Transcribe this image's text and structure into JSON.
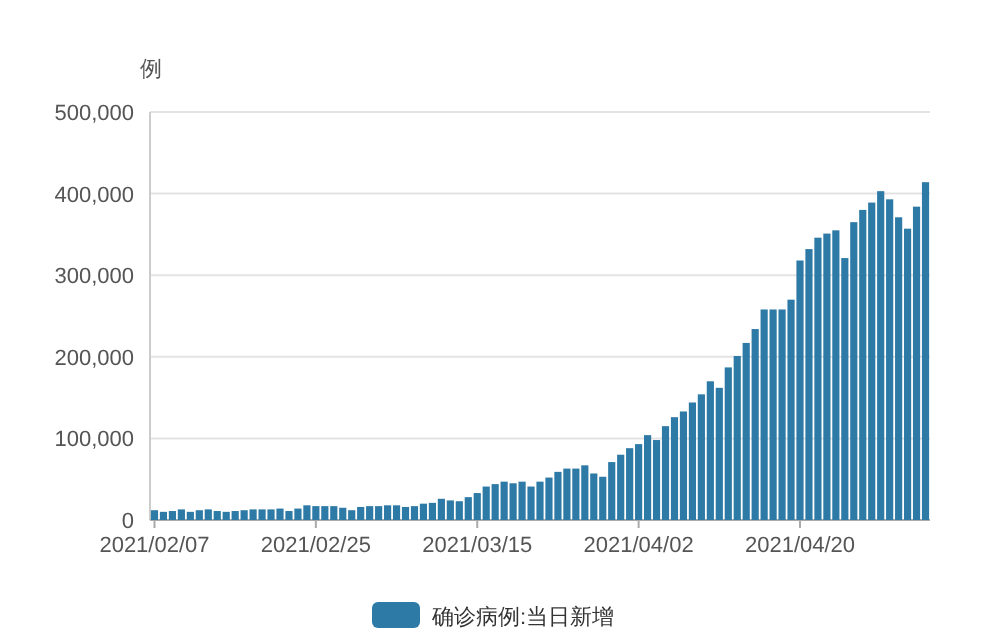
{
  "chart_data": {
    "type": "bar",
    "ylabel": "例",
    "categories": [
      "2021/02/07",
      null,
      null,
      null,
      null,
      null,
      null,
      null,
      null,
      null,
      null,
      null,
      null,
      null,
      null,
      null,
      null,
      null,
      "2021/02/25",
      null,
      null,
      null,
      null,
      null,
      null,
      null,
      null,
      null,
      null,
      null,
      null,
      null,
      null,
      null,
      null,
      null,
      "2021/03/15",
      null,
      null,
      null,
      null,
      null,
      null,
      null,
      null,
      null,
      null,
      null,
      null,
      null,
      null,
      null,
      null,
      null,
      "2021/04/02",
      null,
      null,
      null,
      null,
      null,
      null,
      null,
      null,
      null,
      null,
      null,
      null,
      null,
      null,
      null,
      null,
      null,
      "2021/04/20",
      null,
      null,
      null,
      null,
      null,
      null,
      null,
      null,
      null,
      null,
      null,
      null,
      null,
      null
    ],
    "series": [
      {
        "name": "确诊病例:当日新增",
        "color": "#2e7aa6",
        "values": [
          12000,
          10000,
          11000,
          13000,
          10000,
          12000,
          13000,
          11000,
          10000,
          11000,
          12000,
          13000,
          13000,
          13000,
          14000,
          11000,
          14000,
          18000,
          17000,
          17000,
          17000,
          15000,
          12000,
          16000,
          17000,
          17000,
          18000,
          18000,
          16000,
          17000,
          20000,
          21000,
          26000,
          24000,
          23000,
          28000,
          33000,
          41000,
          44000,
          47000,
          45000,
          47000,
          41000,
          47000,
          52000,
          59000,
          63000,
          63000,
          67000,
          57000,
          53000,
          71000,
          80000,
          88000,
          93000,
          104000,
          98000,
          115000,
          126000,
          133000,
          144000,
          154000,
          170000,
          162000,
          187000,
          201000,
          217000,
          234000,
          258000,
          258000,
          258000,
          270000,
          318000,
          332000,
          346000,
          351000,
          355000,
          321000,
          365000,
          380000,
          389000,
          403000,
          393000,
          371000,
          357000,
          384000,
          414000
        ]
      }
    ],
    "ylim": [
      0,
      500000
    ],
    "yticks": [
      {
        "value": 0,
        "label": "0"
      },
      {
        "value": 100000,
        "label": "100,000"
      },
      {
        "value": 200000,
        "label": "200,000"
      },
      {
        "value": 300000,
        "label": "300,000"
      },
      {
        "value": 400000,
        "label": "400,000"
      },
      {
        "value": 500000,
        "label": "500,000"
      }
    ],
    "grid": "y",
    "legend": "bottom"
  }
}
